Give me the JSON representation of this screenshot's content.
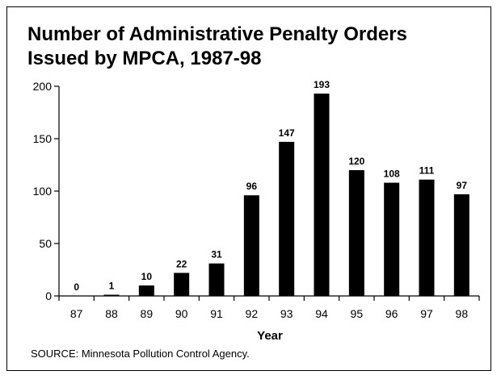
{
  "chart_data": {
    "type": "bar",
    "title": [
      "Number of Administrative Penalty Orders",
      "Issued by MPCA, 1987-98"
    ],
    "xlabel": "Year",
    "ylabel": "",
    "ylim": [
      0,
      200
    ],
    "yticks": [
      0,
      50,
      100,
      150,
      200
    ],
    "categories": [
      "87",
      "88",
      "89",
      "90",
      "91",
      "92",
      "93",
      "94",
      "95",
      "96",
      "97",
      "98"
    ],
    "values": [
      0,
      1,
      10,
      22,
      31,
      96,
      147,
      193,
      120,
      108,
      111,
      97
    ],
    "data_labels": true,
    "grid": false,
    "bar_color": "#000000"
  },
  "source": "SOURCE:  Minnesota Pollution Control Agency."
}
